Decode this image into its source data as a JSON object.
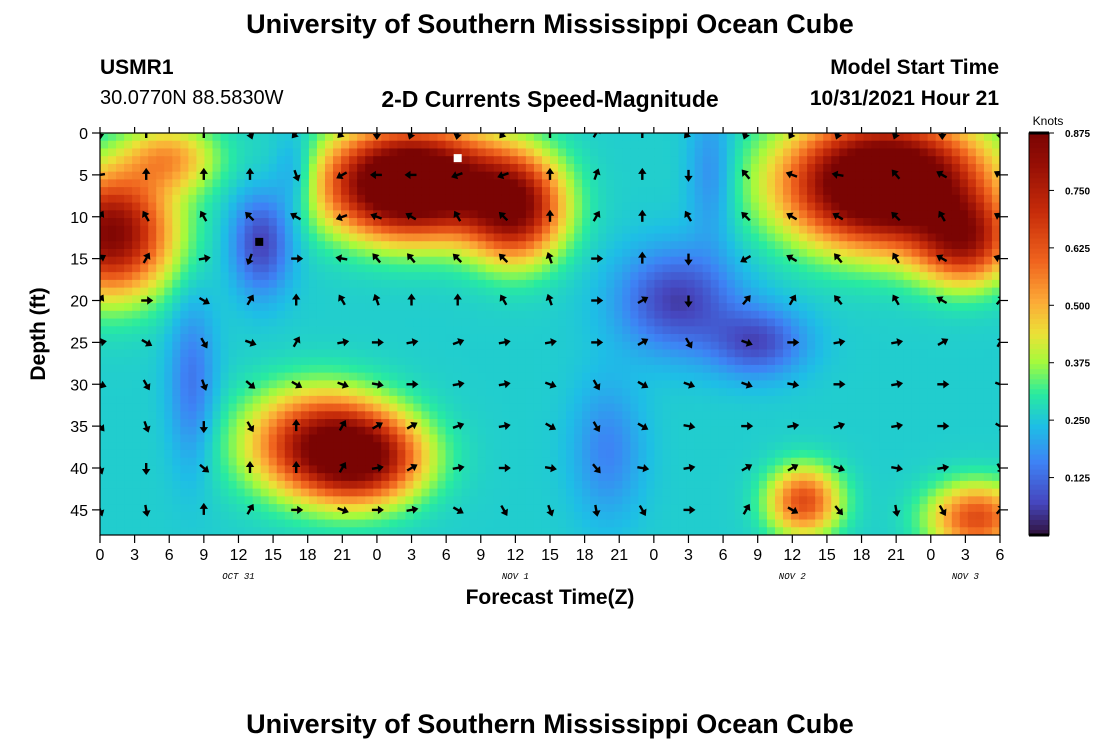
{
  "header": {
    "title": "University of Southern Mississippi Ocean Cube",
    "station_id": "USMR1",
    "coordinates": "30.0770N  88.5830W",
    "subtitle": "2-D Currents Speed-Magnitude",
    "model_start_label": "Model Start Time",
    "model_start_value": "10/31/2021 Hour 21"
  },
  "footer": {
    "title": "University of Southern Mississippi Ocean Cube"
  },
  "chart_data": {
    "type": "heatmap",
    "title": "2-D Currents Speed-Magnitude",
    "xlabel": "Forecast Time(Z)",
    "ylabel": "Depth (ft)",
    "x_unit": "hours from Oct 31 00Z",
    "x_range": [
      0,
      78
    ],
    "y_range": [
      0,
      48
    ],
    "x_ticks": [
      {
        "value": 0,
        "label": "0"
      },
      {
        "value": 3,
        "label": "3"
      },
      {
        "value": 6,
        "label": "6"
      },
      {
        "value": 9,
        "label": "9"
      },
      {
        "value": 12,
        "label": "12"
      },
      {
        "value": 15,
        "label": "15"
      },
      {
        "value": 18,
        "label": "18"
      },
      {
        "value": 21,
        "label": "21"
      },
      {
        "value": 24,
        "label": "0"
      },
      {
        "value": 27,
        "label": "3"
      },
      {
        "value": 30,
        "label": "6"
      },
      {
        "value": 33,
        "label": "9"
      },
      {
        "value": 36,
        "label": "12"
      },
      {
        "value": 39,
        "label": "15"
      },
      {
        "value": 42,
        "label": "18"
      },
      {
        "value": 45,
        "label": "21"
      },
      {
        "value": 48,
        "label": "0"
      },
      {
        "value": 51,
        "label": "3"
      },
      {
        "value": 54,
        "label": "6"
      },
      {
        "value": 57,
        "label": "9"
      },
      {
        "value": 60,
        "label": "12"
      },
      {
        "value": 63,
        "label": "15"
      },
      {
        "value": 66,
        "label": "18"
      },
      {
        "value": 69,
        "label": "21"
      },
      {
        "value": 72,
        "label": "0"
      },
      {
        "value": 75,
        "label": "3"
      },
      {
        "value": 78,
        "label": "6"
      }
    ],
    "y_ticks": [
      0,
      5,
      10,
      15,
      20,
      25,
      30,
      35,
      40,
      45
    ],
    "date_labels": [
      {
        "value": 12,
        "label": "OCT 31"
      },
      {
        "value": 36,
        "label": "NOV 1"
      },
      {
        "value": 60,
        "label": "NOV 2"
      },
      {
        "value": 75,
        "label": "NOV 3"
      }
    ],
    "colorbar": {
      "unit": "Knots",
      "min": 0.0,
      "max": 0.875,
      "ticks": [
        "0.875",
        "0.750",
        "0.625",
        "0.500",
        "0.375",
        "0.250",
        "0.125"
      ],
      "tick_values": [
        0.875,
        0.75,
        0.625,
        0.5,
        0.375,
        0.25,
        0.125
      ]
    },
    "speed_features": [
      {
        "x": 1,
        "y": 12,
        "speed": 0.6,
        "sx": 5,
        "sy": 7
      },
      {
        "x": 6,
        "y": 3,
        "speed": 0.25,
        "sx": 4,
        "sy": 4
      },
      {
        "x": 27,
        "y": 6,
        "speed": 0.9,
        "sx": 7,
        "sy": 6
      },
      {
        "x": 36,
        "y": 9,
        "speed": 0.55,
        "sx": 4,
        "sy": 6
      },
      {
        "x": 68,
        "y": 6,
        "speed": 0.9,
        "sx": 8,
        "sy": 7
      },
      {
        "x": 75,
        "y": 13,
        "speed": 0.45,
        "sx": 4,
        "sy": 5
      },
      {
        "x": 19,
        "y": 37,
        "speed": 0.48,
        "sx": 6,
        "sy": 6
      },
      {
        "x": 23,
        "y": 39,
        "speed": 0.45,
        "sx": 5,
        "sy": 5
      },
      {
        "x": 61,
        "y": 44,
        "speed": 0.38,
        "sx": 3,
        "sy": 4
      },
      {
        "x": 76,
        "y": 46,
        "speed": 0.38,
        "sx": 4,
        "sy": 4
      },
      {
        "x": 14,
        "y": 13,
        "speed": -0.2,
        "sx": 2.5,
        "sy": 6
      },
      {
        "x": 17,
        "y": 5,
        "speed": -0.12,
        "sx": 2,
        "sy": 5
      },
      {
        "x": 8,
        "y": 30,
        "speed": -0.12,
        "sx": 2,
        "sy": 10
      },
      {
        "x": 50,
        "y": 20,
        "speed": -0.2,
        "sx": 5,
        "sy": 6
      },
      {
        "x": 57,
        "y": 25,
        "speed": -0.18,
        "sx": 4,
        "sy": 4
      },
      {
        "x": 53,
        "y": 5,
        "speed": -0.1,
        "sx": 2,
        "sy": 8
      },
      {
        "x": 44,
        "y": 38,
        "speed": -0.1,
        "sx": 3,
        "sy": 8
      }
    ],
    "base_speed": 0.26,
    "markers": [
      {
        "x": 31,
        "y": 3,
        "color": "#ffffff"
      },
      {
        "x": 13.8,
        "y": 13,
        "color": "#000000"
      }
    ],
    "vectors": {
      "times": [
        0,
        4,
        9,
        13,
        17,
        21,
        24,
        27,
        31,
        35,
        39,
        43,
        47,
        51,
        56,
        60,
        64,
        69,
        73,
        78
      ],
      "depths": [
        0,
        5,
        10,
        15,
        20,
        25,
        30,
        35,
        40,
        45
      ],
      "directions_deg": [
        [
          180,
          0,
          0,
          160,
          220,
          225,
          180,
          200,
          190,
          220,
          0,
          30,
          0,
          220,
          200,
          210,
          200,
          200,
          180,
          170
        ],
        [
          260,
          0,
          0,
          0,
          160,
          240,
          270,
          270,
          250,
          250,
          0,
          20,
          0,
          180,
          320,
          290,
          280,
          320,
          300,
          300
        ],
        [
          30,
          330,
          330,
          315,
          300,
          250,
          290,
          300,
          330,
          315,
          0,
          30,
          0,
          330,
          315,
          300,
          300,
          315,
          330,
          300
        ],
        [
          60,
          30,
          80,
          200,
          90,
          280,
          320,
          320,
          315,
          315,
          340,
          90,
          0,
          180,
          240,
          300,
          320,
          330,
          300,
          290
        ],
        [
          30,
          90,
          120,
          30,
          0,
          330,
          340,
          0,
          0,
          330,
          340,
          90,
          60,
          180,
          40,
          30,
          320,
          330,
          300,
          40
        ],
        [
          80,
          120,
          150,
          110,
          30,
          80,
          90,
          80,
          70,
          80,
          80,
          90,
          60,
          150,
          110,
          90,
          80,
          80,
          60,
          30
        ],
        [
          110,
          150,
          160,
          130,
          120,
          110,
          100,
          90,
          80,
          80,
          110,
          150,
          120,
          110,
          110,
          100,
          90,
          80,
          90,
          110
        ],
        [
          140,
          160,
          180,
          150,
          0,
          30,
          60,
          60,
          70,
          80,
          120,
          150,
          120,
          100,
          90,
          80,
          70,
          80,
          90,
          120
        ],
        [
          160,
          180,
          130,
          0,
          0,
          30,
          80,
          60,
          80,
          90,
          100,
          140,
          100,
          80,
          60,
          60,
          110,
          100,
          80,
          150
        ],
        [
          160,
          170,
          0,
          30,
          90,
          110,
          90,
          80,
          120,
          150,
          160,
          170,
          150,
          90,
          30,
          120,
          140,
          170,
          150,
          40
        ]
      ]
    }
  }
}
